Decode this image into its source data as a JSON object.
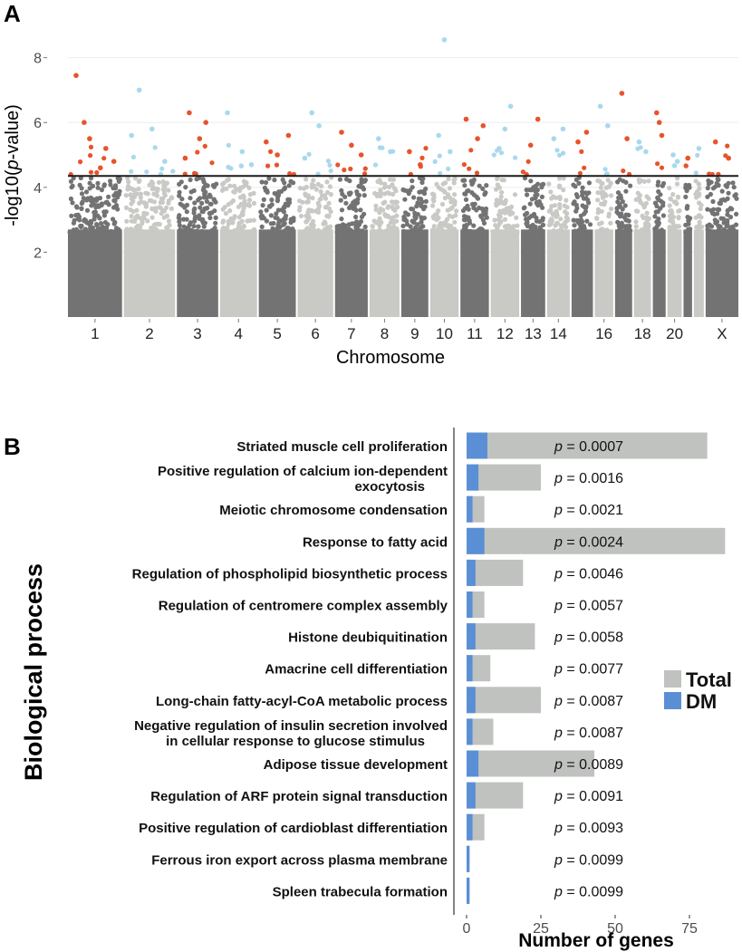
{
  "panel_a": {
    "letter": "A",
    "chart_data": {
      "type": "scatter",
      "subtype": "manhattan",
      "xlabel": "Chromosome",
      "ylabel_prefix": "-log10(",
      "ylabel_italic": "p",
      "ylabel_suffix": "-value)",
      "ylim": [
        0,
        8.8
      ],
      "yticks": [
        2,
        4,
        6,
        8
      ],
      "threshold": 4.35,
      "chromosomes": [
        "1",
        "2",
        "3",
        "4",
        "5",
        "6",
        "7",
        "8",
        "9",
        "10",
        "11",
        "12",
        "13",
        "14",
        "15",
        "16",
        "17",
        "18",
        "19",
        "20",
        "21",
        "22",
        "X"
      ],
      "chromosome_tick_labels": [
        "1",
        "2",
        "3",
        "4",
        "5",
        "6",
        "7",
        "8",
        "9",
        "10",
        "11",
        "12",
        "13",
        "14",
        "16",
        "18",
        "20",
        "X"
      ],
      "colors": {
        "dark": "#737373",
        "light": "#c9c9c5",
        "sig_dark": "#e8532b",
        "sig_light": "#a9d8ee",
        "threshold": "#1a1a1a"
      },
      "significant_points": [
        {
          "chr": "1",
          "x": 0.15,
          "y": 7.45
        },
        {
          "chr": "1",
          "x": 0.4,
          "y": 5.5
        },
        {
          "chr": "1",
          "x": 0.7,
          "y": 5.2
        },
        {
          "chr": "1",
          "x": 0.85,
          "y": 4.8
        },
        {
          "chr": "1",
          "x": 0.3,
          "y": 6.0
        },
        {
          "chr": "1",
          "x": 0.6,
          "y": 4.6
        },
        {
          "chr": "2",
          "x": 0.3,
          "y": 7.0
        },
        {
          "chr": "2",
          "x": 0.55,
          "y": 5.8
        },
        {
          "chr": "2",
          "x": 0.8,
          "y": 4.8
        },
        {
          "chr": "2",
          "x": 0.15,
          "y": 5.6
        },
        {
          "chr": "3",
          "x": 0.3,
          "y": 6.3
        },
        {
          "chr": "3",
          "x": 0.55,
          "y": 5.5
        },
        {
          "chr": "3",
          "x": 0.7,
          "y": 6.0
        },
        {
          "chr": "3",
          "x": 0.2,
          "y": 4.9
        },
        {
          "chr": "4",
          "x": 0.2,
          "y": 6.3
        },
        {
          "chr": "4",
          "x": 0.6,
          "y": 5.1
        },
        {
          "chr": "4",
          "x": 0.85,
          "y": 4.7
        },
        {
          "chr": "5",
          "x": 0.2,
          "y": 5.4
        },
        {
          "chr": "5",
          "x": 0.5,
          "y": 5.0
        },
        {
          "chr": "5",
          "x": 0.8,
          "y": 5.6
        },
        {
          "chr": "6",
          "x": 0.4,
          "y": 6.3
        },
        {
          "chr": "6",
          "x": 0.6,
          "y": 5.9
        },
        {
          "chr": "6",
          "x": 0.2,
          "y": 4.9
        },
        {
          "chr": "7",
          "x": 0.2,
          "y": 5.7
        },
        {
          "chr": "7",
          "x": 0.5,
          "y": 5.3
        },
        {
          "chr": "7",
          "x": 0.8,
          "y": 5.0
        },
        {
          "chr": "8",
          "x": 0.3,
          "y": 5.5
        },
        {
          "chr": "8",
          "x": 0.7,
          "y": 5.1
        },
        {
          "chr": "9",
          "x": 0.3,
          "y": 5.1
        },
        {
          "chr": "9",
          "x": 0.7,
          "y": 4.7
        },
        {
          "chr": "10",
          "x": 0.5,
          "y": 8.55
        },
        {
          "chr": "10",
          "x": 0.3,
          "y": 5.6
        },
        {
          "chr": "10",
          "x": 0.7,
          "y": 5.1
        },
        {
          "chr": "11",
          "x": 0.2,
          "y": 6.1
        },
        {
          "chr": "11",
          "x": 0.6,
          "y": 5.5
        },
        {
          "chr": "11",
          "x": 0.8,
          "y": 5.9
        },
        {
          "chr": "12",
          "x": 0.3,
          "y": 5.2
        },
        {
          "chr": "12",
          "x": 0.7,
          "y": 6.5
        },
        {
          "chr": "12",
          "x": 0.5,
          "y": 5.8
        },
        {
          "chr": "13",
          "x": 0.4,
          "y": 5.3
        },
        {
          "chr": "13",
          "x": 0.7,
          "y": 6.1
        },
        {
          "chr": "14",
          "x": 0.3,
          "y": 5.5
        },
        {
          "chr": "14",
          "x": 0.7,
          "y": 5.8
        },
        {
          "chr": "15",
          "x": 0.3,
          "y": 5.4
        },
        {
          "chr": "15",
          "x": 0.7,
          "y": 5.7
        },
        {
          "chr": "16",
          "x": 0.3,
          "y": 6.5
        },
        {
          "chr": "16",
          "x": 0.7,
          "y": 5.9
        },
        {
          "chr": "17",
          "x": 0.4,
          "y": 6.9
        },
        {
          "chr": "17",
          "x": 0.7,
          "y": 5.5
        },
        {
          "chr": "18",
          "x": 0.3,
          "y": 5.4
        },
        {
          "chr": "18",
          "x": 0.7,
          "y": 5.1
        },
        {
          "chr": "19",
          "x": 0.3,
          "y": 6.3
        },
        {
          "chr": "19",
          "x": 0.5,
          "y": 6.0
        },
        {
          "chr": "19",
          "x": 0.7,
          "y": 5.6
        },
        {
          "chr": "20",
          "x": 0.4,
          "y": 5.0
        },
        {
          "chr": "20",
          "x": 0.7,
          "y": 4.8
        },
        {
          "chr": "21",
          "x": 0.5,
          "y": 4.9
        },
        {
          "chr": "22",
          "x": 0.5,
          "y": 5.2
        },
        {
          "chr": "X",
          "x": 0.3,
          "y": 5.4
        },
        {
          "chr": "X",
          "x": 0.7,
          "y": 4.9
        }
      ]
    }
  },
  "panel_b": {
    "letter": "B",
    "chart_data": {
      "type": "bar",
      "orientation": "horizontal",
      "xlabel": "Number of genes",
      "ylabel": "Biological process",
      "xlim": [
        0,
        90
      ],
      "xticks": [
        0,
        25,
        50,
        75
      ],
      "p_prefix": "p",
      "categories": [
        [
          "Striated muscle cell proliferation"
        ],
        [
          "Positive regulation of calcium ion-dependent",
          "exocytosis"
        ],
        [
          "Meiotic chromosome condensation"
        ],
        [
          "Response to fatty acid"
        ],
        [
          "Regulation of phospholipid biosynthetic process"
        ],
        [
          "Regulation of centromere complex assembly"
        ],
        [
          "Histone deubiquitination"
        ],
        [
          "Amacrine cell differentiation"
        ],
        [
          "Long-chain fatty-acyl-CoA metabolic process"
        ],
        [
          "Negative regulation of insulin secretion involved",
          "in cellular response to glucose stimulus"
        ],
        [
          "Adipose tissue development"
        ],
        [
          "Regulation of ARF protein signal transduction"
        ],
        [
          "Positive regulation of cardioblast differentiation"
        ],
        [
          "Ferrous iron export across plasma membrane"
        ],
        [
          "Spleen trabecula formation"
        ]
      ],
      "series": [
        {
          "name": "Total",
          "color": "#bfc2bf",
          "values": [
            81,
            25,
            6,
            87,
            19,
            6,
            23,
            8,
            25,
            9,
            43,
            19,
            6,
            1,
            1
          ]
        },
        {
          "name": "DM",
          "color": "#5a8fd6",
          "values": [
            7,
            4,
            2,
            6,
            3,
            2,
            3,
            2,
            3,
            2,
            4,
            3,
            2,
            1,
            1
          ]
        }
      ],
      "p_values": [
        "= 0.0007",
        "= 0.0016",
        "= 0.0021",
        "= 0.0024",
        "= 0.0046",
        "= 0.0057",
        "= 0.0058",
        "= 0.0077",
        "= 0.0087",
        "= 0.0087",
        "= 0.0089",
        "= 0.0091",
        "= 0.0093",
        "= 0.0099",
        "= 0.0099"
      ],
      "legend": [
        "Total",
        "DM"
      ],
      "legend_position": "right"
    }
  }
}
